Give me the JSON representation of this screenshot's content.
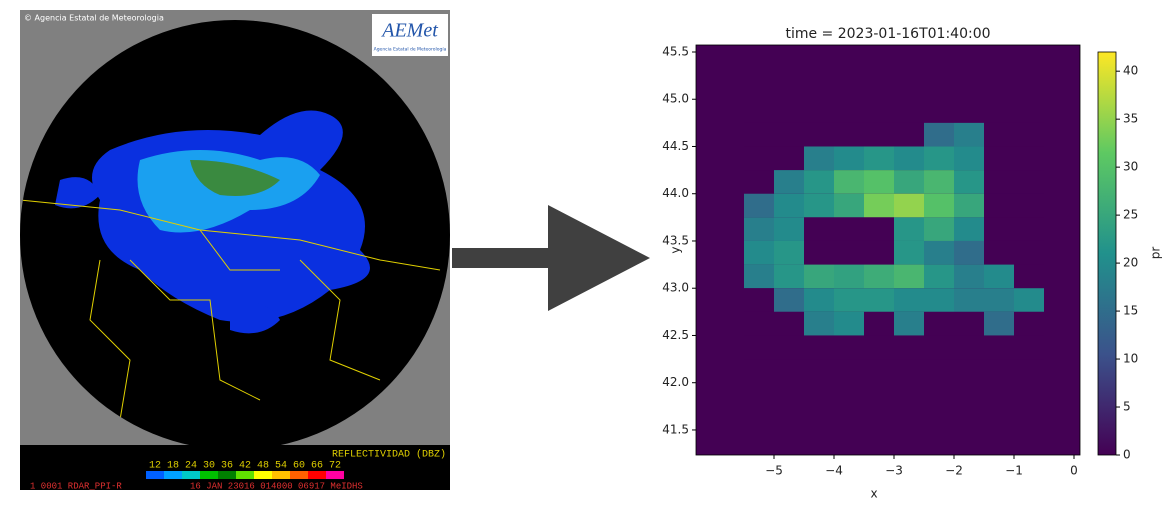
{
  "radar": {
    "credit": "© Agencia Estatal de Meteorologia",
    "logo": "AEMet",
    "logo_caption": "Agencia Estatal de Meteorología",
    "scale_title": "REFLECTIVIDAD (DBZ)",
    "scale_labels": [
      "12",
      "18",
      "24",
      "30",
      "36",
      "42",
      "48",
      "54",
      "60",
      "66",
      "72"
    ],
    "footer_left": "1 0001 RDAR_PPI-R",
    "footer_right": "16 JAN 23016 014000 06917 MeIDHS"
  },
  "chart_data": {
    "type": "heatmap",
    "title": "time = 2023-01-16T01:40:00",
    "x_label": "x",
    "y_label": "y",
    "colormap": "viridis",
    "colorbar_label": "pr",
    "xlim": [
      -6.3,
      0.1
    ],
    "ylim": [
      41.235,
      45.574
    ],
    "clim": [
      0,
      42
    ],
    "xticks": [
      {
        "value": -5,
        "label": "−5"
      },
      {
        "value": -4,
        "label": "−4"
      },
      {
        "value": -3,
        "label": "−3"
      },
      {
        "value": -2,
        "label": "−2"
      },
      {
        "value": -1,
        "label": "−1"
      },
      0
    ],
    "yticks": [
      41.5,
      {
        "value": 42,
        "label": "42.0"
      },
      42.5,
      {
        "value": 43,
        "label": "43.0"
      },
      43.5,
      {
        "value": 44,
        "label": "44.0"
      },
      44.5,
      {
        "value": 45,
        "label": "45.0"
      },
      45.5
    ],
    "cticks": [
      0,
      5,
      10,
      15,
      20,
      25,
      30,
      35,
      40
    ],
    "x": [
      -5.25,
      -4.75,
      -4.25,
      -3.75,
      -3.25,
      -2.75,
      -2.25,
      -1.75,
      -1.25,
      -0.75
    ],
    "y": [
      44.625,
      44.375,
      44.125,
      43.875,
      43.625,
      43.375,
      43.125,
      42.875,
      42.625,
      42.375
    ],
    "x_step": 0.5,
    "y_step": 0.25,
    "z": [
      [
        0,
        0,
        0,
        0,
        0,
        0,
        15,
        18,
        0,
        0
      ],
      [
        0,
        0,
        18,
        20,
        22,
        20,
        22,
        20,
        0,
        0
      ],
      [
        0,
        18,
        22,
        28,
        30,
        25,
        28,
        22,
        0,
        0
      ],
      [
        15,
        20,
        22,
        25,
        33,
        35,
        30,
        25,
        0,
        0
      ],
      [
        18,
        20,
        0,
        0,
        0,
        22,
        25,
        20,
        0,
        0
      ],
      [
        20,
        22,
        0,
        0,
        0,
        22,
        18,
        15,
        0,
        0
      ],
      [
        18,
        22,
        25,
        24,
        26,
        28,
        22,
        18,
        20,
        0
      ],
      [
        0,
        15,
        20,
        22,
        22,
        20,
        20,
        18,
        18,
        20
      ],
      [
        0,
        0,
        18,
        20,
        0,
        18,
        0,
        0,
        15,
        0
      ],
      [
        0,
        0,
        0,
        0,
        0,
        0,
        0,
        0,
        0,
        0
      ]
    ]
  }
}
